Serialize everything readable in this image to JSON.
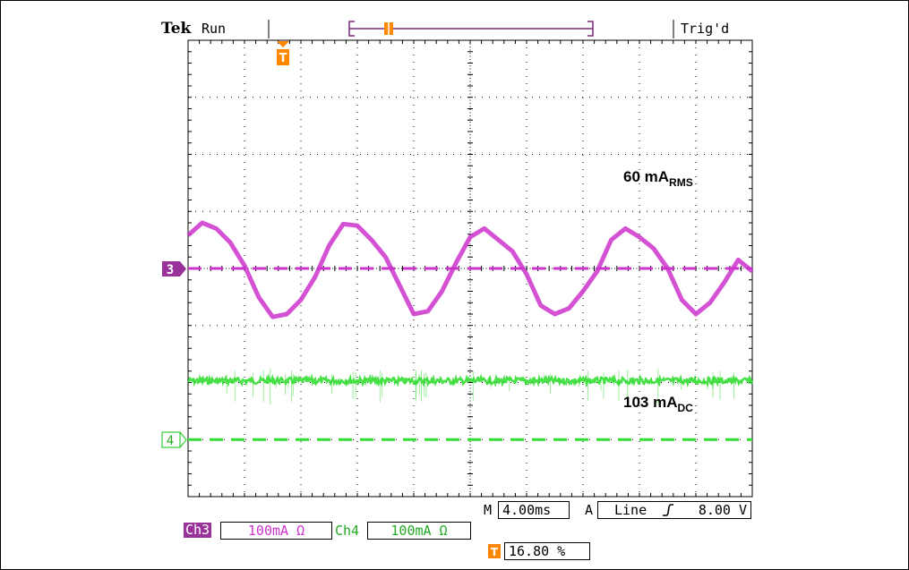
{
  "header": {
    "brand": "Tek",
    "run_state": "Run",
    "trigger_state": "Trig'd"
  },
  "annotations": {
    "ch3_value": "60 mA",
    "ch3_unit_sub": "RMS",
    "ch4_value": "103 mA",
    "ch4_unit_sub": "DC"
  },
  "markers": {
    "ch3": "3",
    "ch4": "4",
    "trigger_glyph": "T"
  },
  "readout": {
    "timebase_prefix": "M",
    "timebase": "4.00ms",
    "trigger_mode": "A",
    "trigger_source": "Line",
    "trigger_level": "8.00 V",
    "ch3_label": "Ch3",
    "ch3_scale": "100mA Ω",
    "ch4_label": "Ch4",
    "ch4_scale": "100mA Ω",
    "trigger_position": "16.80 %"
  },
  "colors": {
    "ch3": "#cc33cc",
    "ch3_tag": "#993399",
    "ch4": "#33dd33",
    "trigger": "#ff8800",
    "graticule": "#000000"
  },
  "chart_data": {
    "type": "line",
    "title": "",
    "xlabel": "",
    "ylabel": "",
    "x_unit": "ms",
    "x_per_div": 4.0,
    "y_per_div_mA": 100,
    "xlim": [
      0,
      40
    ],
    "grid": true,
    "series": [
      {
        "name": "Ch3",
        "color": "#cc33cc",
        "offset_mA": 0,
        "x": [
          0,
          1,
          2,
          3,
          4,
          5,
          6,
          7,
          8,
          9,
          10,
          11,
          12,
          13,
          14,
          15,
          16,
          17,
          18,
          19,
          20,
          21,
          22,
          23,
          24,
          25,
          26,
          27,
          28,
          29,
          30,
          31,
          32,
          33,
          34,
          35,
          36,
          37,
          38,
          39,
          40
        ],
        "y_mA": [
          58,
          80,
          70,
          45,
          5,
          -50,
          -85,
          -80,
          -55,
          -15,
          40,
          78,
          75,
          50,
          20,
          -30,
          -80,
          -75,
          -40,
          10,
          55,
          70,
          50,
          30,
          -10,
          -65,
          -80,
          -70,
          -40,
          -5,
          50,
          70,
          55,
          35,
          0,
          -55,
          -80,
          -60,
          -25,
          15,
          -5
        ]
      },
      {
        "name": "Ch4",
        "color": "#33dd33",
        "offset_mA": -300,
        "x": [
          0,
          40
        ],
        "y_mA": [
          103,
          103
        ]
      }
    ]
  }
}
